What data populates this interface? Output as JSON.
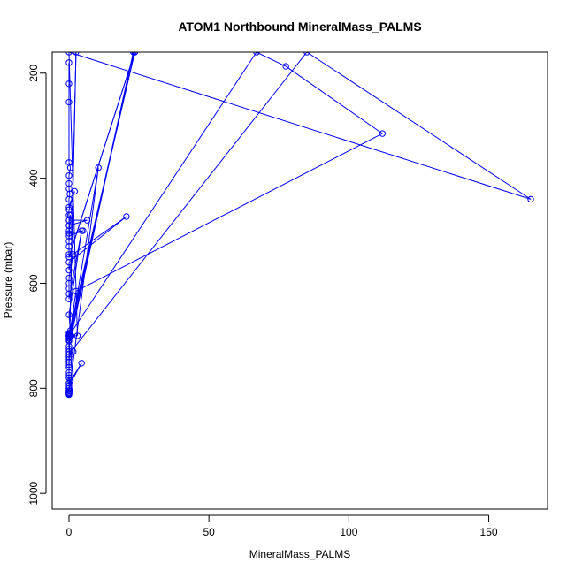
{
  "chart_data": {
    "type": "line",
    "title": "ATOM1 Northbound MineralMass_PALMS",
    "xlabel": "MineralMass_PALMS",
    "ylabel": "Pressure (mbar)",
    "xlim": [
      -6,
      171
    ],
    "ylim": [
      1030,
      160
    ],
    "y_reversed": true,
    "grid": false,
    "marker": "open-circle",
    "series_color": "#0000ff",
    "xticks": [
      0,
      50,
      100,
      150
    ],
    "yticks": [
      200,
      400,
      600,
      800,
      1000
    ],
    "series": [
      {
        "x": [
          0,
          0,
          0,
          0,
          0.5,
          0,
          0,
          0,
          0.3,
          0,
          0,
          2,
          0,
          0,
          0,
          0,
          0,
          0,
          5,
          0,
          0,
          0.5,
          0,
          6.5,
          0,
          0,
          0,
          0,
          23.5,
          0,
          20.5,
          0,
          0,
          1.5,
          0,
          0,
          0,
          0,
          0,
          4.5,
          0,
          0.5,
          23.5,
          0,
          0,
          0,
          0,
          0,
          0,
          0,
          2.5,
          112,
          77.5,
          67,
          0,
          3,
          0,
          165,
          85,
          0,
          1.5,
          0,
          0,
          0,
          0,
          0,
          0,
          0,
          0,
          0,
          10.5,
          0.5,
          23,
          0.8,
          0,
          0.3,
          0,
          0.3,
          0,
          0,
          0,
          0,
          0,
          0,
          0,
          0,
          2.5,
          0,
          0,
          0,
          0.5,
          0,
          4.5,
          0,
          0,
          0,
          0,
          0,
          0,
          0,
          0.3,
          0,
          0,
          0,
          0,
          0
        ],
        "y": [
          180,
          220,
          255,
          370,
          380,
          395,
          410,
          420,
          430,
          440,
          455,
          425,
          460,
          470,
          480,
          490,
          500,
          505,
          500,
          510,
          520,
          470,
          480,
          480,
          490,
          530,
          545,
          550,
          160,
          550,
          473,
          560,
          575,
          545,
          590,
          600,
          610,
          620,
          630,
          500,
          660,
          690,
          160,
          695,
          698,
          700,
          700,
          703,
          705,
          708,
          615,
          315,
          187,
          160,
          700,
          700,
          160,
          440,
          160,
          735,
          730,
          740,
          750,
          760,
          760,
          780,
          790,
          800,
          805,
          810,
          380,
          700,
          160,
          700,
          700,
          700,
          700,
          700,
          710,
          720,
          725,
          730,
          740,
          745,
          750,
          755,
          160,
          770,
          775,
          780,
          785,
          790,
          752,
          795,
          800,
          805,
          808,
          810,
          812,
          810,
          805,
          800,
          805,
          808,
          810,
          812
        ]
      }
    ]
  }
}
